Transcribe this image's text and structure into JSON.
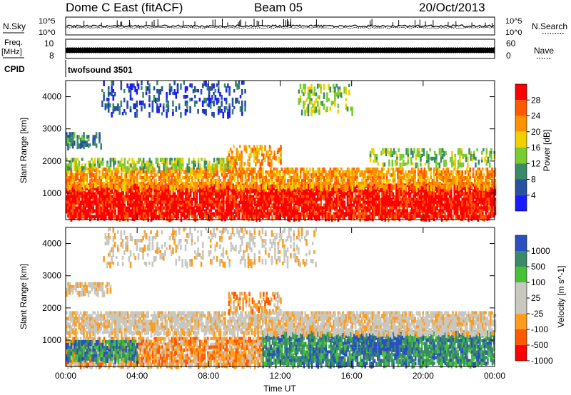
{
  "header": {
    "station": "Dome C East (fitACF)",
    "beam": "Beam 05",
    "date": "20/Oct/2013"
  },
  "top_panels": {
    "nsky_label": "N.Sky",
    "nsky_top_tick": "10^5",
    "nsky_bottom_tick": "10^0",
    "nsearch_label": "N.Search",
    "nsearch_top_tick": "10^5",
    "nsearch_bottom_tick": "10^0",
    "freq_label_line1": "Freq.",
    "freq_label_line2": "[MHz]",
    "freq_left_top": "10",
    "freq_left_bottom": "8",
    "nave_label": "Nave",
    "nave_right_top": "60",
    "nave_right_bottom": "0",
    "cpid_label": "CPID",
    "cpid_value": "twofsound 3501"
  },
  "colors": {
    "power": [
      "#1a1aff",
      "#2a50a0",
      "#3a8a6a",
      "#7acc30",
      "#f0d000",
      "#ff9000",
      "#ff5a00",
      "#ff0000"
    ],
    "velocity": [
      "#ff0000",
      "#ff5a00",
      "#ff9c1e",
      "#c8c8c0",
      "#c8c8c0",
      "#48c038",
      "#3a8a6a",
      "#2a50c0"
    ]
  },
  "chart_data": [
    {
      "type": "heatmap",
      "panel": "power",
      "ylabel": "Slant Range [km]",
      "xlabel": "",
      "x_ticks": [
        "00:00",
        "04:00",
        "08:00",
        "12:00",
        "16:00",
        "20:00",
        "00:00"
      ],
      "x_range_hours": [
        0,
        24
      ],
      "y_ticks": [
        1000,
        2000,
        3000,
        4000
      ],
      "ylim": [
        180,
        4500
      ],
      "colorbar": {
        "label": "Power [dB]",
        "ticks": [
          "28",
          "24",
          "20",
          "16",
          "12",
          "8",
          "4"
        ]
      },
      "bands": [
        {
          "t0": 0,
          "t1": 24,
          "r0": 300,
          "r1": 1300,
          "level": 7,
          "density": 0.85
        },
        {
          "t0": 0,
          "t1": 24,
          "r0": 1200,
          "r1": 1800,
          "level": 5,
          "density": 0.65
        },
        {
          "t0": 0,
          "t1": 9.5,
          "r0": 1800,
          "r1": 2100,
          "level": 3,
          "density": 0.45
        },
        {
          "t0": 9,
          "t1": 12,
          "r0": 1900,
          "r1": 2500,
          "level": 5,
          "density": 0.35
        },
        {
          "t0": 0,
          "t1": 2,
          "r0": 2500,
          "r1": 2900,
          "level": 2,
          "density": 0.45
        },
        {
          "t0": 2,
          "t1": 10,
          "r0": 3500,
          "r1": 4500,
          "level": 1,
          "density": 0.2
        },
        {
          "t0": 13,
          "t1": 16,
          "r0": 3600,
          "r1": 4400,
          "level": 3,
          "density": 0.25
        },
        {
          "t0": 17,
          "t1": 24,
          "r0": 1900,
          "r1": 2400,
          "level": 3,
          "density": 0.3
        }
      ]
    },
    {
      "type": "heatmap",
      "panel": "velocity",
      "ylabel": "Slant Range [km]",
      "xlabel": "Time UT",
      "x_ticks": [
        "00:00",
        "04:00",
        "08:00",
        "12:00",
        "16:00",
        "20:00",
        "00:00"
      ],
      "x_range_hours": [
        0,
        24
      ],
      "y_ticks": [
        1000,
        2000,
        3000,
        4000
      ],
      "ylim": [
        180,
        4500
      ],
      "colorbar": {
        "label": "Velocity [m s^-1]",
        "ticks": [
          "1000",
          "500",
          "100",
          "25",
          "-25",
          "-100",
          "-500",
          "-1000"
        ]
      },
      "bands": [
        {
          "t0": 0,
          "t1": 11,
          "r0": 300,
          "r1": 1100,
          "level": 2,
          "density": 0.8
        },
        {
          "t0": 0,
          "t1": 4,
          "r0": 400,
          "r1": 1000,
          "level": 6,
          "density": 0.7
        },
        {
          "t0": 11,
          "t1": 24,
          "r0": 300,
          "r1": 1300,
          "level": 6,
          "density": 0.8
        },
        {
          "t0": 16,
          "t1": 19,
          "r0": 700,
          "r1": 1200,
          "level": 7,
          "density": 0.45
        },
        {
          "t0": 0,
          "t1": 24,
          "r0": 1200,
          "r1": 1900,
          "level": 3,
          "density": 0.75
        },
        {
          "t0": 0,
          "t1": 2.5,
          "r0": 2500,
          "r1": 2800,
          "level": 3,
          "density": 0.5
        },
        {
          "t0": 9,
          "t1": 12,
          "r0": 1900,
          "r1": 2500,
          "level": 2,
          "density": 0.35
        },
        {
          "t0": 2,
          "t1": 14,
          "r0": 3400,
          "r1": 4500,
          "level": 3,
          "density": 0.2
        }
      ]
    }
  ]
}
